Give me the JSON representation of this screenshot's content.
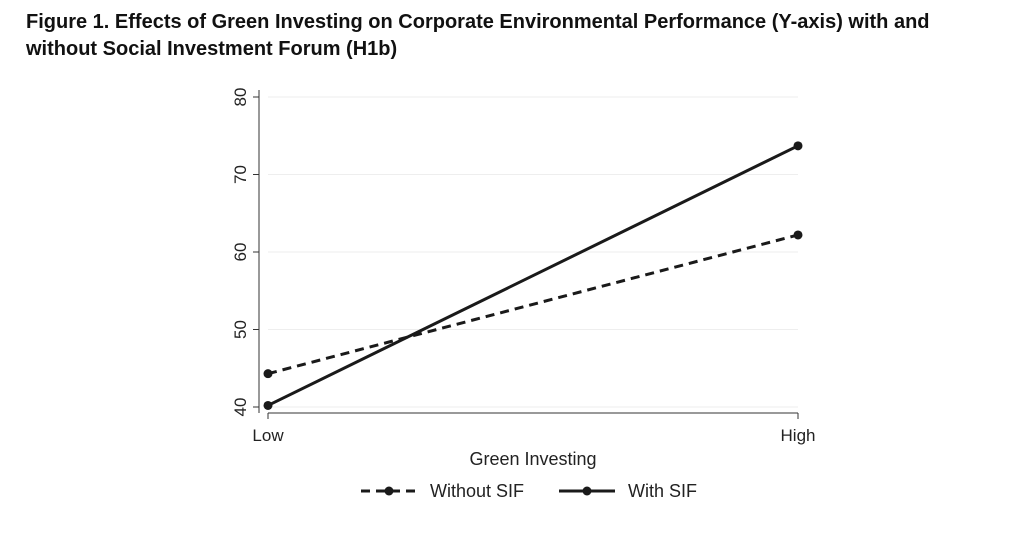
{
  "figure": {
    "title": "Figure 1.  Effects of Green Investing on Corporate Environmental Performance (Y-axis) with and without Social Investment Forum (H1b)"
  },
  "chart_data": {
    "type": "line",
    "categories": [
      "Low",
      "High"
    ],
    "xlabel": "Green Investing",
    "ylabel": "",
    "ylim": [
      40,
      80
    ],
    "yticks": [
      40,
      50,
      60,
      70,
      80
    ],
    "grid": true,
    "legend_position": "bottom",
    "series": [
      {
        "name": "Without SIF",
        "values": [
          44.3,
          62.2
        ],
        "style": "dashed",
        "color": "#1a1a1a"
      },
      {
        "name": "With SIF",
        "values": [
          40.2,
          73.7
        ],
        "style": "solid",
        "color": "#1a1a1a"
      }
    ]
  }
}
